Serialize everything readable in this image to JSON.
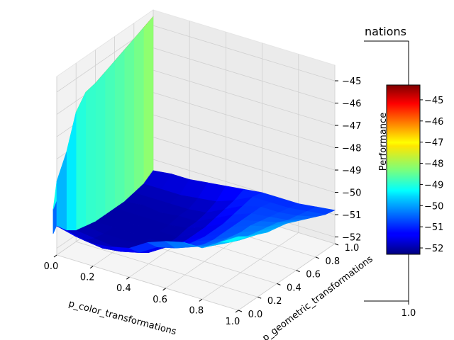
{
  "title": "nations",
  "chart_data": {
    "type": "surface3d",
    "title_fragment": "nations",
    "xlabel": "p_color_transformations",
    "ylabel": "p_geometric_transformations",
    "zlabel": "",
    "x_ticks": [
      "0.0",
      "0.2",
      "0.4",
      "0.6",
      "0.8",
      "1.0"
    ],
    "y_ticks": [
      "0.0",
      "0.2",
      "0.4",
      "0.6",
      "0.8",
      "1.0"
    ],
    "z_ticks": [
      "-45",
      "-46",
      "-47",
      "-48",
      "-49",
      "-50",
      "-51",
      "-52"
    ],
    "xlim": [
      0,
      1
    ],
    "ylim": [
      0,
      1
    ],
    "zlim": [
      -52.3,
      -44.3
    ],
    "colormap": "jet",
    "x": [
      0.0,
      0.1,
      0.2,
      0.3,
      0.4,
      0.5,
      0.6,
      0.7,
      0.8,
      0.9,
      1.0
    ],
    "y": [
      0.0,
      0.1,
      0.2,
      0.3,
      0.4,
      0.5,
      0.6,
      0.7,
      0.8,
      0.9,
      1.0
    ],
    "z": [
      [
        -51.0,
        -51.5,
        -51.8,
        -51.9,
        -52.0,
        -52.0,
        -52.0,
        -52.0,
        -51.9,
        -51.8,
        -51.5
      ],
      [
        -51.2,
        -51.7,
        -51.9,
        -52.0,
        -52.0,
        -52.0,
        -52.0,
        -51.9,
        -51.9,
        -51.8,
        -51.4
      ],
      [
        -51.3,
        -51.8,
        -52.0,
        -52.0,
        -52.0,
        -52.0,
        -52.0,
        -52.0,
        -51.9,
        -51.8,
        -51.4
      ],
      [
        -51.2,
        -51.7,
        -51.9,
        -52.0,
        -52.0,
        -52.0,
        -52.0,
        -51.9,
        -51.9,
        -51.7,
        -51.3
      ],
      [
        -51.0,
        -51.5,
        -51.8,
        -51.9,
        -52.0,
        -52.0,
        -51.9,
        -51.9,
        -51.8,
        -51.6,
        -51.2
      ],
      [
        -50.5,
        -51.0,
        -51.3,
        -51.5,
        -51.6,
        -51.6,
        -51.6,
        -51.5,
        -51.4,
        -51.3,
        -51.1
      ],
      [
        -50.2,
        -50.8,
        -51.0,
        -51.1,
        -51.2,
        -51.2,
        -51.2,
        -51.1,
        -51.0,
        -50.9,
        -51.0
      ],
      [
        -50.0,
        -50.5,
        -50.7,
        -50.8,
        -50.8,
        -50.8,
        -50.8,
        -50.8,
        -50.8,
        -50.9,
        -51.0
      ],
      [
        -50.0,
        -50.2,
        -50.3,
        -50.4,
        -50.5,
        -50.5,
        -50.6,
        -50.7,
        -50.8,
        -50.9,
        -51.0
      ],
      [
        -49.5,
        -49.8,
        -50.0,
        -50.1,
        -50.2,
        -50.3,
        -50.4,
        -50.6,
        -50.7,
        -50.8,
        -50.9
      ],
      [
        -49.0,
        -49.3,
        -49.5,
        -49.7,
        -49.8,
        -49.9,
        -50.1,
        -50.3,
        -50.5,
        -50.7,
        -50.8
      ]
    ],
    "wall_columns": [
      {
        "x": 0.0,
        "z": [
          -49.0,
          -48.0,
          -46.5,
          -45.9,
          -45.8,
          -45.6,
          -45.4,
          -45.2,
          -45.0,
          -44.8,
          -44.6
        ]
      },
      {
        "x": -0.03,
        "z": [
          -50.3,
          -49.5,
          -47.8,
          -46.8,
          -46.2,
          -45.9,
          -45.7,
          -45.5,
          -45.3,
          -45.1,
          -44.9
        ]
      },
      {
        "x": -0.06,
        "z": [
          -51.4,
          -50.7,
          -49.3,
          -48.0,
          -46.8,
          -46.0,
          -45.9,
          -45.8,
          -45.6,
          -45.4,
          -45.3
        ]
      }
    ],
    "colorbar": {
      "label": "Performance",
      "ticks": [
        "-45",
        "-46",
        "-47",
        "-48",
        "-49",
        "-50",
        "-51",
        "-52"
      ],
      "range": [
        -52.3,
        -44.3
      ],
      "bottom_tick": "1.0"
    }
  }
}
